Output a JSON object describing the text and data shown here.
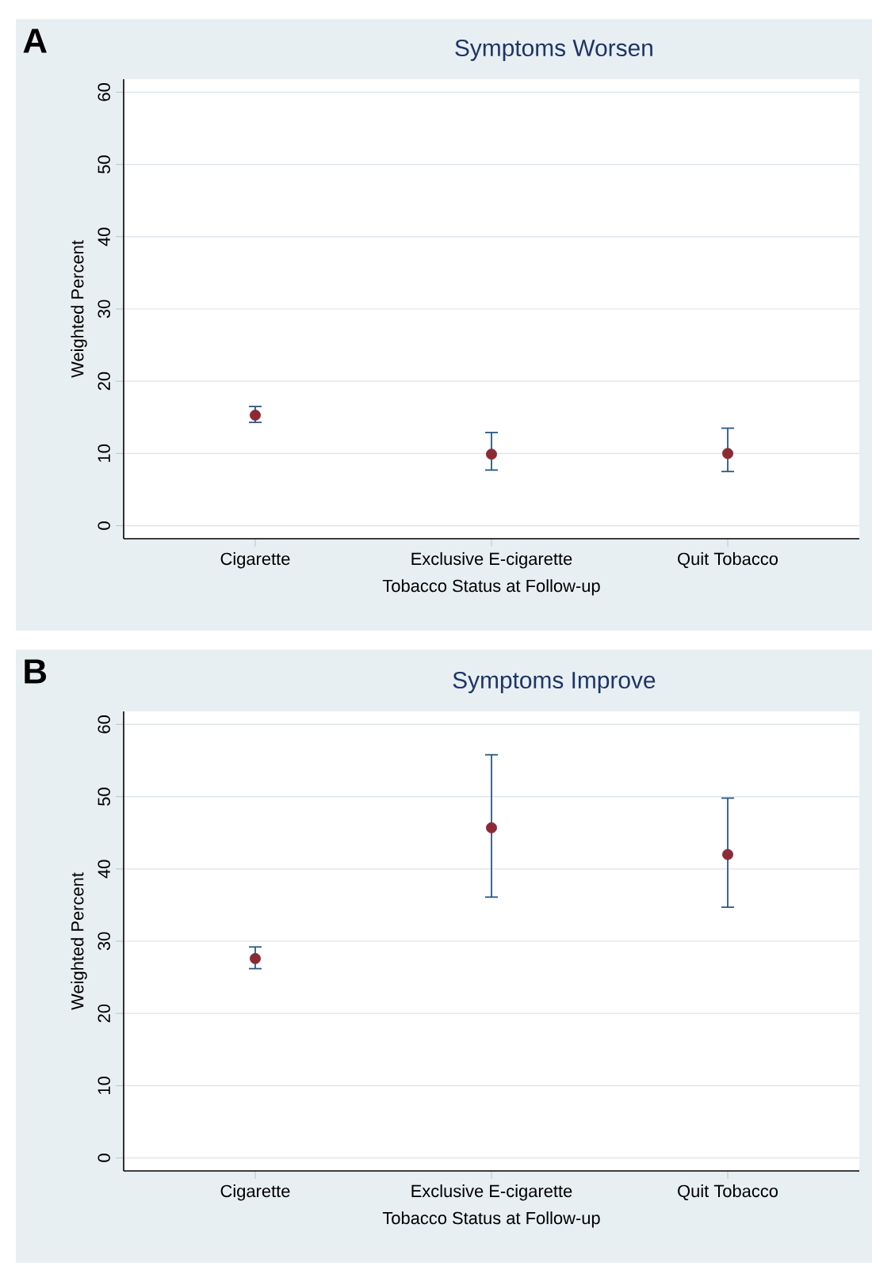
{
  "chart_data": [
    {
      "type": "scatter",
      "title": "Symptoms Worsen",
      "xlabel": "Tobacco Status at Follow-up",
      "ylabel": "Weighted Percent",
      "annotations": [
        "A"
      ],
      "categories": [
        "Cigarette",
        "Exclusive E-cigarette",
        "Quit Tobacco"
      ],
      "series": [
        {
          "color": "#8b2a35",
          "values": [
            15.3,
            9.9,
            10.0
          ],
          "errors": [
            [
              14.3,
              16.5
            ],
            [
              7.7,
              12.9
            ],
            [
              7.5,
              13.5
            ]
          ]
        }
      ],
      "ylim": [
        -1.8,
        61.8
      ],
      "yticks": [
        0,
        10,
        20,
        30,
        40,
        50,
        60
      ],
      "grid": "y"
    },
    {
      "type": "scatter",
      "title": "Symptoms Improve",
      "xlabel": "Tobacco Status at Follow-up",
      "ylabel": "Weighted Percent",
      "annotations": [
        "B"
      ],
      "categories": [
        "Cigarette",
        "Exclusive E-cigarette",
        "Quit Tobacco"
      ],
      "series": [
        {
          "color": "#8b2a35",
          "values": [
            27.6,
            45.7,
            42.0
          ],
          "errors": [
            [
              26.2,
              29.2
            ],
            [
              36.1,
              55.8
            ],
            [
              34.7,
              49.8
            ]
          ]
        }
      ],
      "ylim": [
        -1.8,
        61.8
      ],
      "yticks": [
        0,
        10,
        20,
        30,
        40,
        50,
        60
      ],
      "grid": "y"
    }
  ]
}
